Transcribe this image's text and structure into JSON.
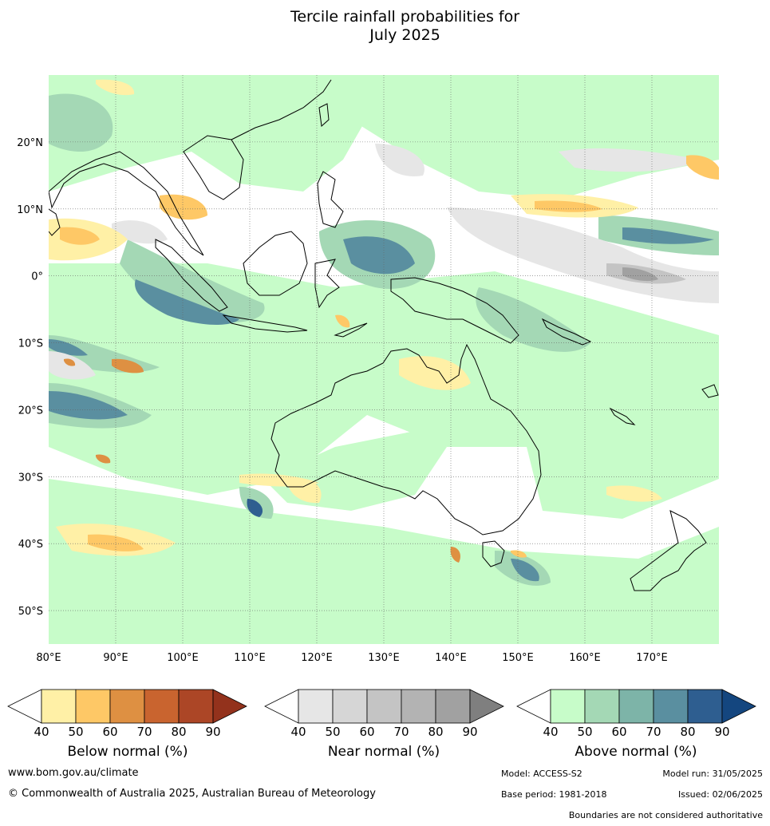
{
  "title_line1": "Tercile rainfall probabilities for",
  "title_line2": "July 2025",
  "map": {
    "lon_range": [
      80,
      180
    ],
    "lat_range": [
      -55,
      30
    ],
    "x_ticks": [
      {
        "lon": 80,
        "label": "80°E"
      },
      {
        "lon": 90,
        "label": "90°E"
      },
      {
        "lon": 100,
        "label": "100°E"
      },
      {
        "lon": 110,
        "label": "110°E"
      },
      {
        "lon": 120,
        "label": "120°E"
      },
      {
        "lon": 130,
        "label": "130°E"
      },
      {
        "lon": 140,
        "label": "140°E"
      },
      {
        "lon": 150,
        "label": "150°E"
      },
      {
        "lon": 160,
        "label": "160°E"
      },
      {
        "lon": 170,
        "label": "170°E"
      }
    ],
    "y_ticks": [
      {
        "lat": 20,
        "label": "20°N"
      },
      {
        "lat": 10,
        "label": "10°N"
      },
      {
        "lat": 0,
        "label": "0°"
      },
      {
        "lat": -10,
        "label": "10°S"
      },
      {
        "lat": -20,
        "label": "20°S"
      },
      {
        "lat": -30,
        "label": "30°S"
      },
      {
        "lat": -40,
        "label": "40°S"
      },
      {
        "lat": -50,
        "label": "50°S"
      }
    ],
    "grid": true
  },
  "colorbars": {
    "ticks": [
      "40",
      "50",
      "60",
      "70",
      "80",
      "90"
    ],
    "below": {
      "caption": "Below normal (%)",
      "colors": [
        "#fff0a6",
        "#fec866",
        "#de9042",
        "#c9642f",
        "#ac4626",
        "#93321c"
      ]
    },
    "near": {
      "caption": "Near normal (%)",
      "colors": [
        "#e6e6e6",
        "#d6d6d6",
        "#c4c4c4",
        "#b3b3b3",
        "#a1a1a1",
        "#7f7f7f"
      ]
    },
    "above": {
      "caption": "Above normal (%)",
      "colors": [
        "#c7fcc9",
        "#a4d8b5",
        "#7db4a8",
        "#5a8fa0",
        "#2e5e90",
        "#14467f"
      ]
    }
  },
  "colors": {
    "land": "#ffffff",
    "ocean_base": "#ffffff",
    "coast": "#000000",
    "border": "#888888"
  },
  "footer": {
    "website": "www.bom.gov.au/climate",
    "copyright": "© Commonwealth of Australia 2025, Australian Bureau of Meteorology",
    "model": "Model: ACCESS-S2",
    "model_run": "Model run: 31/05/2025",
    "base_period": "Base period: 1981-2018",
    "issued": "Issued: 02/06/2025",
    "boundaries": "Boundaries are not considered authoritative"
  }
}
